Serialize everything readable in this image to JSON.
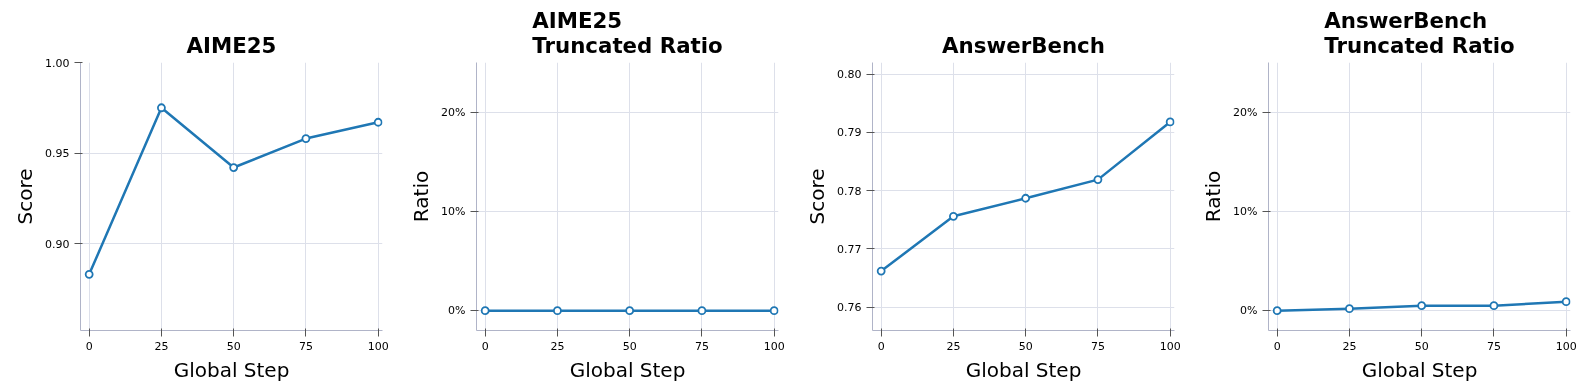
{
  "chart_data": [
    {
      "type": "line",
      "title": "AIME25",
      "xlabel": "Global Step",
      "ylabel": "Score",
      "x": [
        0,
        25,
        50,
        75,
        100
      ],
      "series": [
        {
          "color": "#1f77b4",
          "values": [
            0.883,
            0.975,
            0.942,
            0.958,
            0.967
          ]
        }
      ],
      "xlim": [
        -3,
        101.5
      ],
      "xticks": [
        0,
        25,
        50,
        75,
        100
      ],
      "ylim": [
        0.852,
        1.0
      ],
      "yticks": [
        {
          "value": 0.9,
          "label": "0.90"
        },
        0.95,
        {
          "value": 1.0,
          "label": "1.00"
        }
      ],
      "grid": true,
      "marker": "circle",
      "line_style": "solid"
    },
    {
      "type": "line",
      "title": "AIME25\nTruncated Ratio",
      "xlabel": "Global Step",
      "ylabel": "Ratio",
      "x": [
        0,
        25,
        50,
        75,
        100
      ],
      "series": [
        {
          "color": "#1f77b4",
          "values": [
            0,
            0,
            0,
            0,
            0
          ]
        }
      ],
      "xlim": [
        -3,
        101.5
      ],
      "xticks": [
        0,
        25,
        50,
        75,
        100
      ],
      "ylim": [
        -2,
        25
      ],
      "yticks": [
        {
          "value": 0,
          "label": "0%"
        },
        {
          "value": 10,
          "label": "10%"
        },
        {
          "value": 20,
          "label": "20%"
        }
      ],
      "grid": true,
      "marker": "circle",
      "line_style": "solid"
    },
    {
      "type": "line",
      "title": "AnswerBench",
      "xlabel": "Global Step",
      "ylabel": "Score",
      "x": [
        0,
        25,
        50,
        75,
        100
      ],
      "series": [
        {
          "color": "#1f77b4",
          "values": [
            0.7662,
            0.7756,
            0.7787,
            0.7819,
            0.7918
          ]
        }
      ],
      "xlim": [
        -3,
        101.5
      ],
      "xticks": [
        0,
        25,
        50,
        75,
        100
      ],
      "ylim": [
        0.756,
        0.802
      ],
      "yticks": [
        {
          "value": 0.76,
          "label": "0.76"
        },
        {
          "value": 0.77,
          "label": "0.77"
        },
        {
          "value": 0.78,
          "label": "0.78"
        },
        {
          "value": 0.79,
          "label": "0.79"
        },
        {
          "value": 0.8,
          "label": "0.80"
        }
      ],
      "grid": true,
      "marker": "circle",
      "line_style": "solid"
    },
    {
      "type": "line",
      "title": "AnswerBench\nTruncated Ratio",
      "xlabel": "Global Step",
      "ylabel": "Ratio",
      "x": [
        0,
        25,
        50,
        75,
        100
      ],
      "series": [
        {
          "color": "#1f77b4",
          "values": [
            0,
            0.2,
            0.5,
            0.5,
            0.9
          ]
        }
      ],
      "xlim": [
        -3,
        101.5
      ],
      "xticks": [
        0,
        25,
        50,
        75,
        100
      ],
      "ylim": [
        -2,
        25
      ],
      "yticks": [
        {
          "value": 0,
          "label": "0%"
        },
        {
          "value": 10,
          "label": "10%"
        },
        {
          "value": 20,
          "label": "20%"
        }
      ],
      "grid": true,
      "marker": "circle",
      "line_style": "solid"
    }
  ]
}
